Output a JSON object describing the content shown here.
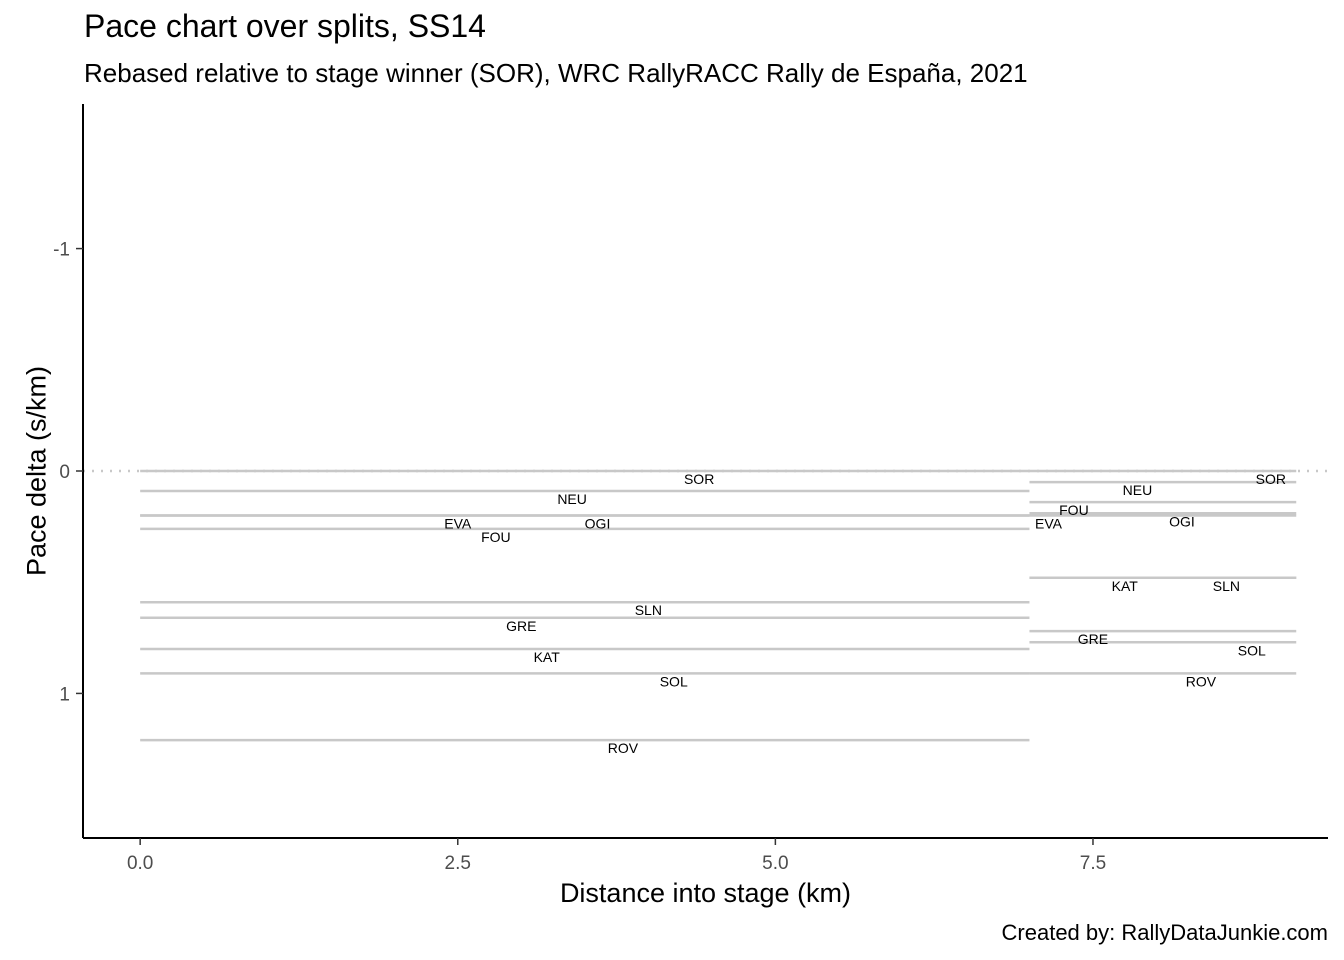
{
  "chart_data": {
    "type": "line",
    "title": "Pace chart over splits, SS14",
    "subtitle": "Rebased relative to stage winner (SOR), WRC RallyRACC Rally de España, 2021",
    "caption": "Created by: RallyDataJunkie.com",
    "xlabel": "Distance into stage (km)",
    "ylabel": "Pace delta (s/km)",
    "xlim": [
      -0.45,
      9.35
    ],
    "ylim": [
      -1.65,
      1.65
    ],
    "y_reversed": true,
    "x_ticks": [
      0.0,
      2.5,
      5.0,
      7.5
    ],
    "x_tick_labels": [
      "0.0",
      "2.5",
      "5.0",
      "7.5"
    ],
    "y_ticks": [
      -1,
      0,
      1
    ],
    "y_tick_labels": [
      "-1",
      "0",
      "1"
    ],
    "reference_line": {
      "y": 0,
      "style": "dotted"
    },
    "grid": false,
    "legend": "none",
    "splits": [
      {
        "x_start": 0.0,
        "x_end": 7.0
      },
      {
        "x_start": 7.0,
        "x_end": 9.1
      }
    ],
    "series": [
      {
        "name": "SOR",
        "values": [
          0.0,
          0.0
        ],
        "label_x": [
          4.4,
          8.9
        ]
      },
      {
        "name": "NEU",
        "values": [
          0.09,
          0.05
        ],
        "label_x": [
          3.4,
          7.85
        ]
      },
      {
        "name": "EVA",
        "values": [
          0.2,
          0.2
        ],
        "label_x": [
          2.5,
          7.15
        ]
      },
      {
        "name": "OGI",
        "values": [
          0.2,
          0.19
        ],
        "label_x": [
          3.6,
          8.2
        ]
      },
      {
        "name": "FOU",
        "values": [
          0.26,
          0.14
        ],
        "label_x": [
          2.8,
          7.35
        ]
      },
      {
        "name": "SLN",
        "values": [
          0.59,
          0.48
        ],
        "label_x": [
          4.0,
          8.55
        ]
      },
      {
        "name": "GRE",
        "values": [
          0.66,
          0.72
        ],
        "label_x": [
          3.0,
          7.5
        ]
      },
      {
        "name": "KAT",
        "values": [
          0.8,
          0.48
        ],
        "label_x": [
          3.2,
          7.75
        ]
      },
      {
        "name": "SOL",
        "values": [
          0.91,
          0.77
        ],
        "label_x": [
          4.2,
          8.75
        ]
      },
      {
        "name": "ROV",
        "values": [
          1.21,
          0.91
        ],
        "label_x": [
          3.8,
          8.35
        ]
      }
    ],
    "colors": {
      "segment": "#c8c8c8",
      "reference": "#c8c8c8",
      "axis": "#000000"
    }
  }
}
